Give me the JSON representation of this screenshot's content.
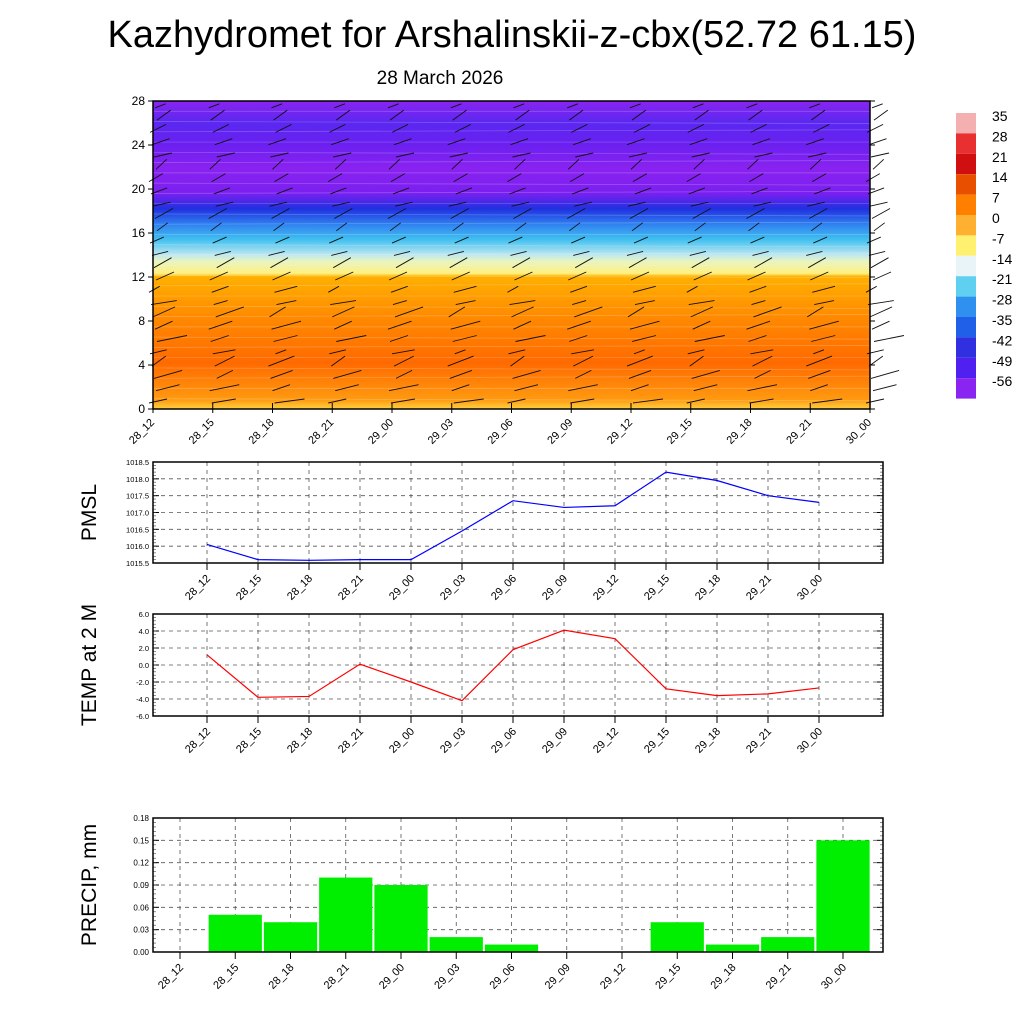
{
  "title": "Kazhydromet for Arshalinskii-z-cbx(52.72 61.15)",
  "subtitle": "28 March 2026",
  "x_labels": [
    "28_12",
    "28_15",
    "28_18",
    "28_21",
    "29_00",
    "29_03",
    "29_06",
    "29_09",
    "29_12",
    "29_15",
    "29_18",
    "29_21",
    "30_00"
  ],
  "chart_data": [
    {
      "type": "heatmap",
      "name": "vertical temperature cross-section with wind barbs",
      "ylim": [
        0,
        28
      ],
      "yticks": [
        0,
        4,
        8,
        12,
        16,
        20,
        24,
        28
      ],
      "colorbar_labels": [
        "35",
        "28",
        "21",
        "14",
        "7",
        "0",
        "-7",
        "-14",
        "-21",
        "-28",
        "-35",
        "-42",
        "-49",
        "-56"
      ],
      "colors": {
        "warm": "#ff7a00",
        "yellow": "#fff07a",
        "cyan": "#40c8f0",
        "blue": "#2030e0",
        "purple": "#8a20f0"
      }
    },
    {
      "type": "line",
      "ylabel": "PMSL",
      "ylim": [
        1015.5,
        1018.5
      ],
      "yticks": [
        "1015.5",
        "1016.0",
        "1016.5",
        "1017.0",
        "1017.5",
        "1018.0",
        "1018.5"
      ],
      "color": "#0000ff",
      "values": [
        1016.05,
        1015.6,
        1015.58,
        1015.6,
        1015.6,
        1016.45,
        1017.35,
        1017.15,
        1017.2,
        1018.2,
        1017.95,
        1017.5,
        1017.3
      ]
    },
    {
      "type": "line",
      "ylabel": "TEMP at 2 M",
      "ylim": [
        -6,
        6
      ],
      "yticks": [
        "-6.0",
        "-4.0",
        "-2.0",
        "0.0",
        "2.0",
        "4.0",
        "6.0"
      ],
      "color": "#ff0000",
      "values": [
        1.2,
        -3.8,
        -3.7,
        0.1,
        -2.0,
        -4.2,
        1.8,
        4.1,
        3.1,
        -2.8,
        -3.6,
        -3.4,
        -2.7
      ]
    },
    {
      "type": "bar",
      "ylabel": "PRECIP, mm",
      "ylim": [
        0,
        0.18
      ],
      "yticks": [
        "0.00",
        "0.03",
        "0.06",
        "0.09",
        "0.12",
        "0.15",
        "0.18"
      ],
      "color": "#00ee00",
      "values": [
        0,
        0.05,
        0.04,
        0.1,
        0.09,
        0.02,
        0.01,
        0,
        0,
        0.04,
        0.01,
        0.02,
        0.15
      ]
    }
  ]
}
